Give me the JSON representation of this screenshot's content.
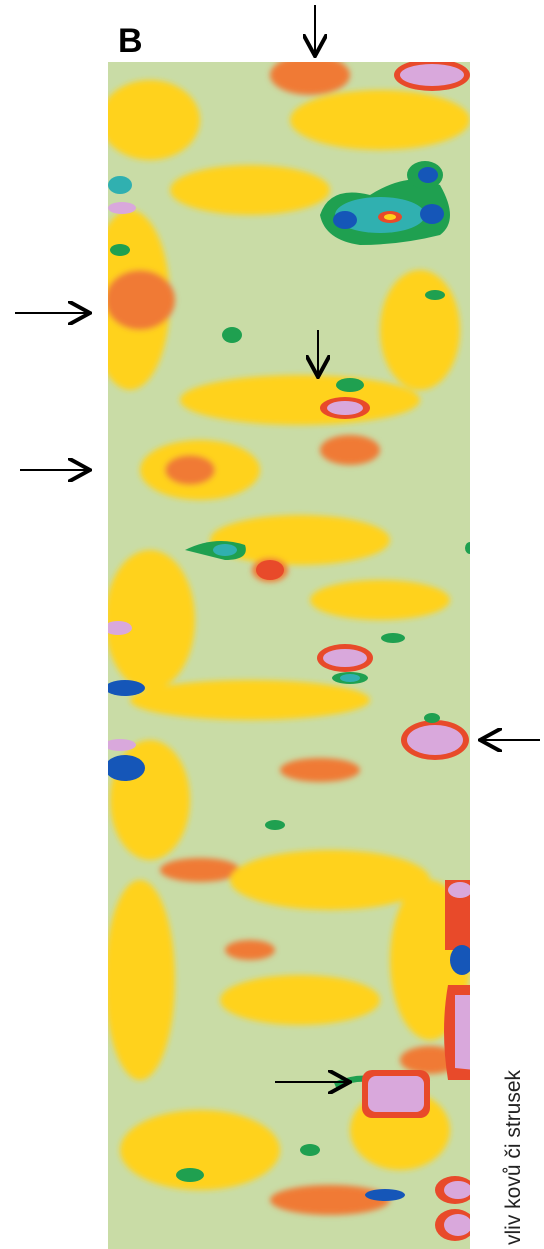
{
  "panel_label": "B",
  "caption": "vliv kovů či strusek"
}
